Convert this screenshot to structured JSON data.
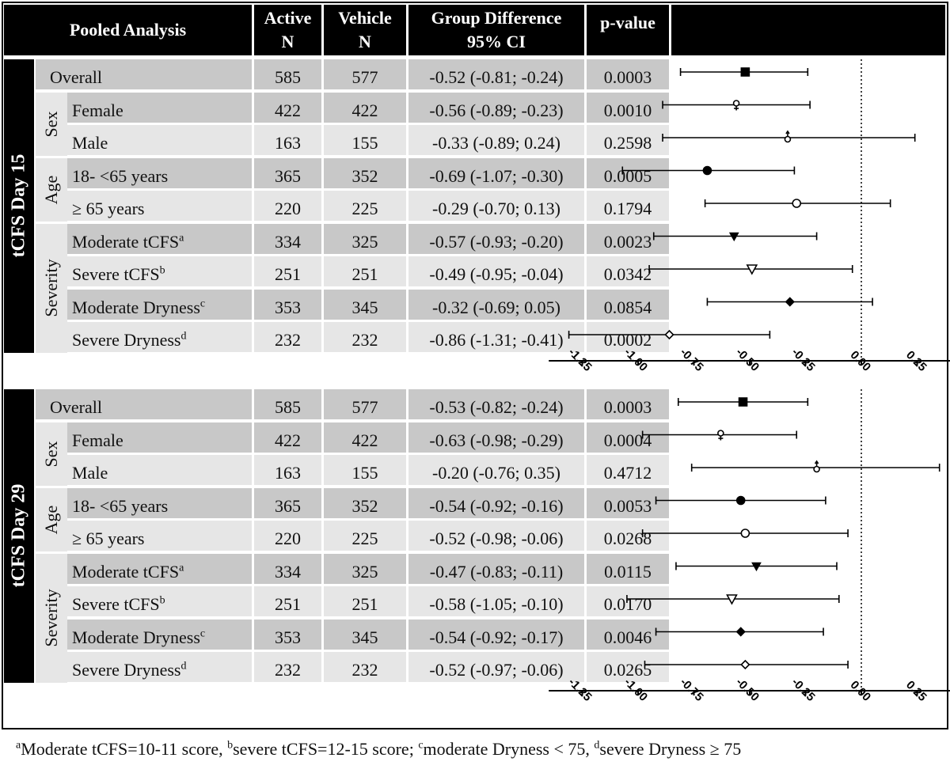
{
  "header": {
    "analysis": "Pooled Analysis",
    "active_l1": "Active",
    "active_l2": "N",
    "vehicle_l1": "Vehicle",
    "vehicle_l2": "N",
    "diff_l1": "Group Difference",
    "diff_l2": "95% CI",
    "pvalue": "p-value"
  },
  "colors": {
    "row_dark": "#c8c8c8",
    "row_light": "#e6e6e6",
    "header": "#000000"
  },
  "sections": [
    {
      "title": "tCFS Day 15",
      "groups": [
        {
          "label": "Sex",
          "rows": [
            1,
            2
          ]
        },
        {
          "label": "Age",
          "rows": [
            3,
            4
          ]
        },
        {
          "label": "Severity",
          "rows": [
            5,
            6,
            7,
            8
          ]
        }
      ],
      "rows": [
        {
          "label": "Overall",
          "sup": "",
          "active": "585",
          "vehicle": "577",
          "diff": "-0.52 (-0.81; -0.24)",
          "p": "0.0003",
          "marker": "square-filled"
        },
        {
          "label": "Female",
          "sup": "",
          "active": "422",
          "vehicle": "422",
          "diff": "-0.56 (-0.89; -0.23)",
          "p": "0.0010",
          "marker": "female-icon"
        },
        {
          "label": "Male",
          "sup": "",
          "active": "163",
          "vehicle": "155",
          "diff": "-0.33 (-0.89; 0.24)",
          "p": "0.2598",
          "marker": "male-icon"
        },
        {
          "label": "18- <65 years",
          "sup": "",
          "active": "365",
          "vehicle": "352",
          "diff": "-0.69 (-1.07; -0.30)",
          "p": "0.0005",
          "marker": "circle-filled"
        },
        {
          "label": "≥ 65 years",
          "sup": "",
          "active": "220",
          "vehicle": "225",
          "diff": "-0.29 (-0.70; 0.13)",
          "p": "0.1794",
          "marker": "circle-open"
        },
        {
          "label": "Moderate tCFS",
          "sup": "a",
          "active": "334",
          "vehicle": "325",
          "diff": "-0.57 (-0.93; -0.20)",
          "p": "0.0023",
          "marker": "triangle-filled"
        },
        {
          "label": "Severe tCFS",
          "sup": "b",
          "active": "251",
          "vehicle": "251",
          "diff": "-0.49 (-0.95; -0.04)",
          "p": "0.0342",
          "marker": "triangle-open"
        },
        {
          "label": "Moderate Dryness",
          "sup": "c",
          "active": "353",
          "vehicle": "345",
          "diff": "-0.32 (-0.69; 0.05)",
          "p": "0.0854",
          "marker": "diamond-filled"
        },
        {
          "label": "Severe Dryness",
          "sup": "d",
          "active": "232",
          "vehicle": "232",
          "diff": "-0.86 (-1.31; -0.41)",
          "p": "0.0002",
          "marker": "diamond-open"
        }
      ]
    },
    {
      "title": "tCFS Day 29",
      "groups": [
        {
          "label": "Sex",
          "rows": [
            1,
            2
          ]
        },
        {
          "label": "Age",
          "rows": [
            3,
            4
          ]
        },
        {
          "label": "Severity",
          "rows": [
            5,
            6,
            7,
            8
          ]
        }
      ],
      "rows": [
        {
          "label": "Overall",
          "sup": "",
          "active": "585",
          "vehicle": "577",
          "diff": "-0.53 (-0.82; -0.24)",
          "p": "0.0003",
          "marker": "square-filled"
        },
        {
          "label": "Female",
          "sup": "",
          "active": "422",
          "vehicle": "422",
          "diff": "-0.63 (-0.98; -0.29)",
          "p": "0.0004",
          "marker": "female-icon"
        },
        {
          "label": "Male",
          "sup": "",
          "active": "163",
          "vehicle": "155",
          "diff": "-0.20 (-0.76; 0.35)",
          "p": "0.4712",
          "marker": "male-icon"
        },
        {
          "label": "18- <65 years",
          "sup": "",
          "active": "365",
          "vehicle": "352",
          "diff": "-0.54 (-0.92; -0.16)",
          "p": "0.0053",
          "marker": "circle-filled"
        },
        {
          "label": "≥ 65 years",
          "sup": "",
          "active": "220",
          "vehicle": "225",
          "diff": "-0.52 (-0.98; -0.06)",
          "p": "0.0268",
          "marker": "circle-open"
        },
        {
          "label": "Moderate tCFS",
          "sup": "a",
          "active": "334",
          "vehicle": "325",
          "diff": "-0.47 (-0.83; -0.11)",
          "p": "0.0115",
          "marker": "triangle-filled"
        },
        {
          "label": "Severe tCFS",
          "sup": "b",
          "active": "251",
          "vehicle": "251",
          "diff": "-0.58 (-1.05; -0.10)",
          "p": "0.0170",
          "marker": "triangle-open"
        },
        {
          "label": "Moderate Dryness",
          "sup": "c",
          "active": "353",
          "vehicle": "345",
          "diff": "-0.54 (-0.92; -0.17)",
          "p": "0.0046",
          "marker": "diamond-filled"
        },
        {
          "label": "Severe Dryness",
          "sup": "d",
          "active": "232",
          "vehicle": "232",
          "diff": "-0.52 (-0.97; -0.06)",
          "p": "0.0265",
          "marker": "diamond-open"
        }
      ]
    }
  ],
  "footnote": [
    {
      "sup": "a",
      "text": "Moderate tCFS=10-11 score, "
    },
    {
      "sup": "b",
      "text": "severe tCFS=12-15 score; "
    },
    {
      "sup": "c",
      "text": "moderate Dryness < 75, "
    },
    {
      "sup": "d",
      "text": "severe Dryness ≥ 75"
    }
  ],
  "chart_data": [
    {
      "type": "forest",
      "title": "tCFS Day 15",
      "categories": [
        "Overall",
        "Female",
        "Male",
        "18- <65 years",
        "≥ 65 years",
        "Moderate tCFS",
        "Severe tCFS",
        "Moderate Dryness",
        "Severe Dryness"
      ],
      "estimate": [
        -0.52,
        -0.56,
        -0.33,
        -0.69,
        -0.29,
        -0.57,
        -0.49,
        -0.32,
        -0.86
      ],
      "ci_low": [
        -0.81,
        -0.89,
        -0.89,
        -1.07,
        -0.7,
        -0.93,
        -0.95,
        -0.69,
        -1.31
      ],
      "ci_high": [
        -0.24,
        -0.23,
        0.24,
        -0.3,
        0.13,
        -0.2,
        -0.04,
        0.05,
        -0.41
      ],
      "xlim": [
        -1.4,
        0.5
      ],
      "xticks": [
        "-1.25",
        "-1.00",
        "-0.75",
        "-0.50",
        "-0.25",
        "0.00",
        "0.25",
        "0.50"
      ],
      "reference_line": 0.0
    },
    {
      "type": "forest",
      "title": "tCFS Day 29",
      "categories": [
        "Overall",
        "Female",
        "Male",
        "18- <65 years",
        "≥ 65 years",
        "Moderate tCFS",
        "Severe tCFS",
        "Moderate Dryness",
        "Severe Dryness"
      ],
      "estimate": [
        -0.53,
        -0.63,
        -0.2,
        -0.54,
        -0.52,
        -0.47,
        -0.58,
        -0.54,
        -0.52
      ],
      "ci_low": [
        -0.82,
        -0.98,
        -0.76,
        -0.92,
        -0.98,
        -0.83,
        -1.05,
        -0.92,
        -0.97
      ],
      "ci_high": [
        -0.24,
        -0.29,
        0.35,
        -0.16,
        -0.06,
        -0.11,
        -0.1,
        -0.17,
        -0.06
      ],
      "xlim": [
        -1.4,
        0.5
      ],
      "xticks": [
        "-1.25",
        "-1.00",
        "-0.75",
        "-0.50",
        "-0.25",
        "0.00",
        "0.25",
        "0.50"
      ],
      "reference_line": 0.0
    }
  ]
}
